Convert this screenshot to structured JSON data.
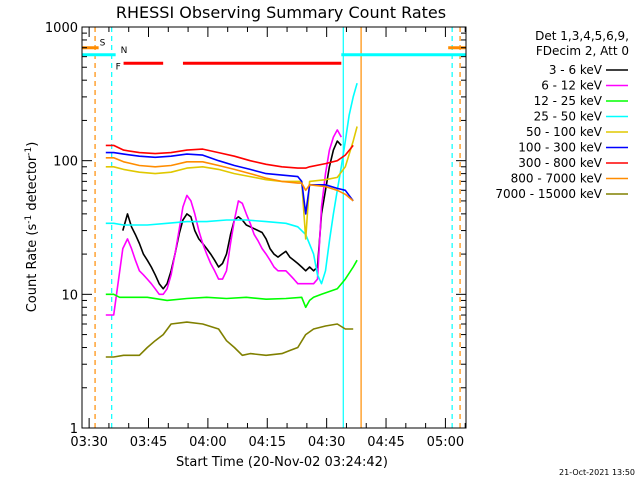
{
  "chart_data": {
    "type": "line",
    "title": "RHESSI Observing Summary Count Rates",
    "xlabel": "Start Time (20-Nov-02 03:24:42)",
    "ylabel_main": "Count Rate (s",
    "ylabel_sup1": "-1",
    "ylabel_mid": " detector",
    "ylabel_sup2": "-1",
    "ylabel_end": ")",
    "yscale": "log",
    "ylim": [
      1,
      1000
    ],
    "xlim_minutes": [
      3.5,
      100.5
    ],
    "x_ticks": [
      {
        "label": "03:30",
        "min": 5.3
      },
      {
        "label": "03:45",
        "min": 20.3
      },
      {
        "label": "04:00",
        "min": 35.3
      },
      {
        "label": "04:15",
        "min": 50.3
      },
      {
        "label": "04:30",
        "min": 65.3
      },
      {
        "label": "04:45",
        "min": 80.3
      },
      {
        "label": "05:00",
        "min": 95.3
      }
    ],
    "y_ticks": [
      {
        "label": "1",
        "value": 1
      },
      {
        "label": "10",
        "value": 10
      },
      {
        "label": "100",
        "value": 100
      },
      {
        "label": "1000",
        "value": 1000
      }
    ],
    "legend_header": [
      "Det 1,3,4,5,6,9,",
      "FDecim 2, Att 0"
    ],
    "series": [
      {
        "name": "3 - 6 keV",
        "color": "#000000",
        "points": [
          [
            13.8,
            30
          ],
          [
            15,
            40
          ],
          [
            16,
            32
          ],
          [
            17,
            28
          ],
          [
            18,
            24
          ],
          [
            19,
            20
          ],
          [
            20,
            18
          ],
          [
            21,
            16
          ],
          [
            22,
            14
          ],
          [
            23,
            12
          ],
          [
            24,
            11
          ],
          [
            25,
            12
          ],
          [
            26,
            15
          ],
          [
            27,
            20
          ],
          [
            28,
            28
          ],
          [
            29,
            36
          ],
          [
            30,
            40
          ],
          [
            31,
            38
          ],
          [
            32,
            30
          ],
          [
            33,
            26
          ],
          [
            34,
            24
          ],
          [
            35,
            22
          ],
          [
            36,
            20
          ],
          [
            37,
            18
          ],
          [
            38,
            16
          ],
          [
            39,
            17
          ],
          [
            40,
            20
          ],
          [
            41,
            28
          ],
          [
            42,
            36
          ],
          [
            43,
            38
          ],
          [
            44,
            36
          ],
          [
            45,
            33
          ],
          [
            46,
            32
          ],
          [
            47,
            31
          ],
          [
            48,
            30
          ],
          [
            49,
            29
          ],
          [
            50,
            26
          ],
          [
            51,
            22
          ],
          [
            52,
            20
          ],
          [
            53,
            19
          ],
          [
            54,
            20
          ],
          [
            55,
            21
          ],
          [
            56,
            19
          ],
          [
            57,
            18
          ],
          [
            58,
            17
          ],
          [
            59,
            16
          ],
          [
            60,
            15
          ],
          [
            61,
            16
          ],
          [
            62,
            15
          ],
          [
            63,
            16
          ],
          [
            64,
            40
          ],
          [
            65,
            60
          ],
          [
            66,
            90
          ],
          [
            67,
            120
          ],
          [
            68,
            140
          ],
          [
            69,
            130
          ]
        ]
      },
      {
        "name": "6 - 12 keV",
        "color": "#ff00ff",
        "points": [
          [
            9.5,
            7
          ],
          [
            11.5,
            7
          ],
          [
            13.8,
            22
          ],
          [
            15,
            26
          ],
          [
            16,
            22
          ],
          [
            17,
            18
          ],
          [
            18,
            15
          ],
          [
            19,
            14
          ],
          [
            20,
            13
          ],
          [
            21,
            12
          ],
          [
            22,
            11
          ],
          [
            23,
            10
          ],
          [
            24,
            10
          ],
          [
            25,
            11
          ],
          [
            26,
            14
          ],
          [
            27,
            20
          ],
          [
            28,
            30
          ],
          [
            29,
            45
          ],
          [
            30,
            55
          ],
          [
            31,
            50
          ],
          [
            32,
            40
          ],
          [
            33,
            30
          ],
          [
            34,
            24
          ],
          [
            35,
            20
          ],
          [
            36,
            17
          ],
          [
            37,
            15
          ],
          [
            38,
            13
          ],
          [
            39,
            13
          ],
          [
            40,
            15
          ],
          [
            41,
            24
          ],
          [
            42,
            36
          ],
          [
            43,
            50
          ],
          [
            44,
            48
          ],
          [
            45,
            40
          ],
          [
            46,
            34
          ],
          [
            47,
            28
          ],
          [
            48,
            25
          ],
          [
            49,
            22
          ],
          [
            50,
            20
          ],
          [
            51,
            18
          ],
          [
            52,
            16
          ],
          [
            53,
            15
          ],
          [
            54,
            15
          ],
          [
            55,
            15
          ],
          [
            56,
            14
          ],
          [
            57,
            13
          ],
          [
            58,
            12
          ],
          [
            59,
            12
          ],
          [
            60,
            12
          ],
          [
            61,
            12
          ],
          [
            62,
            12
          ],
          [
            63,
            13
          ],
          [
            64,
            45
          ],
          [
            65,
            80
          ],
          [
            66,
            120
          ],
          [
            67,
            150
          ],
          [
            68,
            170
          ],
          [
            69,
            150
          ]
        ]
      },
      {
        "name": "12 - 25 keV",
        "color": "#00ff00",
        "points": [
          [
            9.5,
            10
          ],
          [
            11.5,
            10
          ],
          [
            13,
            9.5
          ],
          [
            16,
            9.5
          ],
          [
            20,
            9.5
          ],
          [
            25,
            9
          ],
          [
            30,
            9.3
          ],
          [
            35,
            9.5
          ],
          [
            40,
            9.3
          ],
          [
            45,
            9.5
          ],
          [
            50,
            9.2
          ],
          [
            55,
            9.3
          ],
          [
            59,
            9.5
          ],
          [
            60,
            8
          ],
          [
            61,
            9
          ],
          [
            62,
            9.5
          ],
          [
            64,
            10
          ],
          [
            66,
            10.5
          ],
          [
            68,
            11
          ],
          [
            70,
            13
          ],
          [
            72,
            16
          ],
          [
            73,
            18
          ]
        ]
      },
      {
        "name": "25 - 50 keV",
        "color": "#00ffff",
        "points": [
          [
            9.5,
            34
          ],
          [
            11.5,
            34
          ],
          [
            14,
            33
          ],
          [
            20,
            33
          ],
          [
            25,
            34
          ],
          [
            30,
            35
          ],
          [
            35,
            35
          ],
          [
            40,
            36
          ],
          [
            45,
            36
          ],
          [
            50,
            35
          ],
          [
            55,
            34
          ],
          [
            58,
            32
          ],
          [
            60,
            28
          ],
          [
            62,
            20
          ],
          [
            63,
            14
          ],
          [
            64,
            12
          ],
          [
            65,
            15
          ],
          [
            66,
            25
          ],
          [
            67,
            40
          ],
          [
            68,
            60
          ],
          [
            69,
            90
          ],
          [
            70,
            140
          ],
          [
            71,
            220
          ],
          [
            72,
            300
          ],
          [
            73,
            380
          ]
        ]
      },
      {
        "name": "50 - 100 keV",
        "color": "#e0c800",
        "points": [
          [
            9.5,
            90
          ],
          [
            11.5,
            90
          ],
          [
            14,
            86
          ],
          [
            18,
            82
          ],
          [
            22,
            80
          ],
          [
            26,
            82
          ],
          [
            30,
            88
          ],
          [
            34,
            90
          ],
          [
            38,
            86
          ],
          [
            42,
            80
          ],
          [
            46,
            76
          ],
          [
            50,
            72
          ],
          [
            54,
            70
          ],
          [
            58,
            70
          ],
          [
            59,
            70
          ],
          [
            60,
            26
          ],
          [
            61,
            70
          ],
          [
            65,
            72
          ],
          [
            68,
            75
          ],
          [
            70,
            90
          ],
          [
            72,
            140
          ],
          [
            73,
            180
          ]
        ]
      },
      {
        "name": "100 - 300 keV",
        "color": "#0000ff",
        "points": [
          [
            9.5,
            115
          ],
          [
            11.5,
            115
          ],
          [
            14,
            112
          ],
          [
            18,
            108
          ],
          [
            22,
            106
          ],
          [
            26,
            108
          ],
          [
            30,
            112
          ],
          [
            34,
            110
          ],
          [
            38,
            100
          ],
          [
            42,
            92
          ],
          [
            46,
            86
          ],
          [
            50,
            80
          ],
          [
            54,
            78
          ],
          [
            58,
            76
          ],
          [
            59,
            70
          ],
          [
            60,
            40
          ],
          [
            61,
            66
          ],
          [
            65,
            66
          ],
          [
            68,
            62
          ],
          [
            70,
            60
          ],
          [
            72,
            50
          ]
        ]
      },
      {
        "name": "300 - 800 keV",
        "color": "#ff0000",
        "points": [
          [
            9.5,
            130
          ],
          [
            11.5,
            130
          ],
          [
            14,
            120
          ],
          [
            18,
            115
          ],
          [
            22,
            113
          ],
          [
            26,
            115
          ],
          [
            30,
            120
          ],
          [
            34,
            122
          ],
          [
            38,
            115
          ],
          [
            42,
            108
          ],
          [
            46,
            100
          ],
          [
            50,
            94
          ],
          [
            54,
            90
          ],
          [
            58,
            88
          ],
          [
            60,
            88
          ],
          [
            61,
            90
          ],
          [
            65,
            95
          ],
          [
            68,
            100
          ],
          [
            70,
            110
          ],
          [
            72,
            130
          ]
        ]
      },
      {
        "name": "800 - 7000 keV",
        "color": "#ff8c00",
        "points": [
          [
            9.5,
            105
          ],
          [
            11.5,
            105
          ],
          [
            14,
            98
          ],
          [
            18,
            92
          ],
          [
            22,
            90
          ],
          [
            26,
            92
          ],
          [
            30,
            98
          ],
          [
            34,
            98
          ],
          [
            38,
            92
          ],
          [
            42,
            86
          ],
          [
            46,
            80
          ],
          [
            50,
            74
          ],
          [
            54,
            70
          ],
          [
            58,
            68
          ],
          [
            59,
            68
          ],
          [
            60,
            60
          ],
          [
            61,
            66
          ],
          [
            65,
            64
          ],
          [
            68,
            60
          ],
          [
            70,
            56
          ],
          [
            72,
            50
          ]
        ]
      },
      {
        "name": "7000 - 15000 keV",
        "color": "#808000",
        "points": [
          [
            9.5,
            3.4
          ],
          [
            11.5,
            3.4
          ],
          [
            14,
            3.5
          ],
          [
            18,
            3.5
          ],
          [
            20,
            4
          ],
          [
            22,
            4.5
          ],
          [
            24,
            5
          ],
          [
            26,
            6
          ],
          [
            30,
            6.2
          ],
          [
            34,
            6
          ],
          [
            38,
            5.5
          ],
          [
            40,
            4.5
          ],
          [
            42,
            4
          ],
          [
            44,
            3.5
          ],
          [
            46,
            3.6
          ],
          [
            50,
            3.5
          ],
          [
            54,
            3.6
          ],
          [
            56,
            3.8
          ],
          [
            58,
            4
          ],
          [
            60,
            5
          ],
          [
            62,
            5.5
          ],
          [
            65,
            5.8
          ],
          [
            68,
            6
          ],
          [
            70,
            5.5
          ],
          [
            72,
            5.5
          ]
        ]
      }
    ],
    "vertical_lines": [
      {
        "min": 6.8,
        "color": "#ff8c00",
        "style": "dash"
      },
      {
        "min": 11.0,
        "color": "#00ffff",
        "style": "dash"
      },
      {
        "min": 69.5,
        "color": "#00ffff",
        "style": "solid"
      },
      {
        "min": 74.0,
        "color": "#ff8c00",
        "style": "solid"
      },
      {
        "min": 97.0,
        "color": "#00ffff",
        "style": "dash"
      },
      {
        "min": 99.0,
        "color": "#ff8c00",
        "style": "dash"
      }
    ],
    "flag_bars": [
      {
        "label": "S",
        "color": "#ff8c00",
        "value": 700,
        "segments": [
          [
            3.5,
            7.7
          ],
          [
            96,
            100.5
          ]
        ]
      },
      {
        "label": "N",
        "color": "#00ffff",
        "value": 620,
        "segments": [
          [
            3.5,
            12
          ],
          [
            69,
            100.5
          ]
        ]
      },
      {
        "label": "F",
        "color": "#ff0000",
        "value": 535,
        "segments": [
          [
            14,
            24
          ],
          [
            29,
            69
          ]
        ]
      }
    ]
  },
  "footer_timestamp": "21-Oct-2021 13:50"
}
